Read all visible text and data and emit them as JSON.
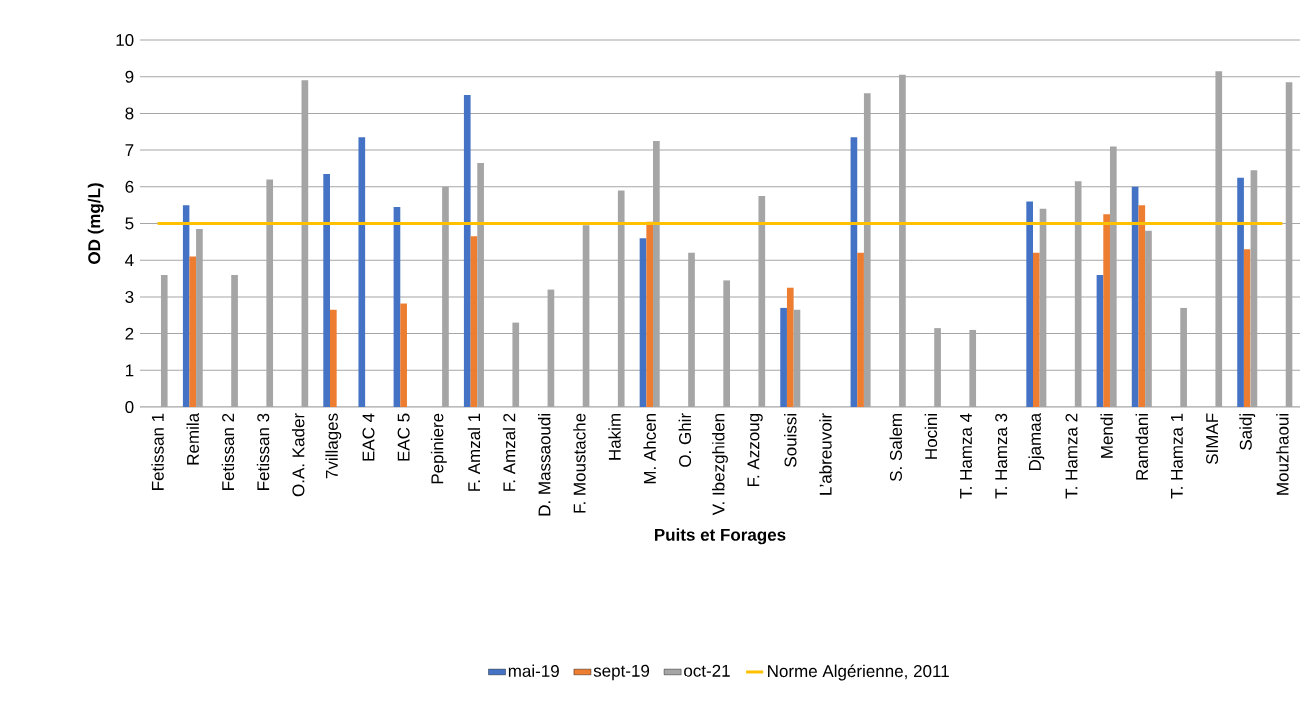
{
  "chart_data": {
    "type": "bar",
    "xlabel": "Puits et Forages",
    "ylabel": "OD (mg/L)",
    "categories": [
      "Fetissan 1",
      "Remila",
      "Fetissan 2",
      "Fetissan 3",
      "O.A. Kader",
      "7villages",
      "EAC 4",
      "EAC 5",
      "Pepiniere",
      "F. Amzal 1",
      "F. Amzal 2",
      "D. Massaoudi",
      "F. Moustache",
      "Hakim",
      "M. Ahcen",
      "O. Ghir",
      "V. Ibezghiden",
      "F. Azzoug",
      "Souissi",
      "L’abreuvoir",
      null,
      "S. Salem",
      "Hocini",
      "T. Hamza 4",
      "T. Hamza 3",
      "Djamaa",
      "T. Hamza 2",
      "Mendi",
      "Ramdani",
      "T. Hamza 1",
      "SIMAF",
      "Saidj",
      "Mouzhaoui"
    ],
    "series": [
      {
        "name": "mai-19",
        "color": "#4472c4",
        "values": [
          null,
          5.5,
          null,
          null,
          null,
          6.35,
          7.35,
          5.45,
          null,
          8.5,
          null,
          null,
          null,
          null,
          4.6,
          null,
          null,
          null,
          2.7,
          null,
          7.35,
          null,
          null,
          null,
          null,
          5.6,
          null,
          3.6,
          6.0,
          null,
          null,
          6.25,
          null
        ]
      },
      {
        "name": "sept-19",
        "color": "#ed7d31",
        "values": [
          null,
          4.1,
          null,
          null,
          null,
          2.65,
          null,
          2.82,
          null,
          4.65,
          null,
          null,
          null,
          null,
          5.05,
          null,
          null,
          null,
          3.25,
          null,
          4.2,
          null,
          null,
          null,
          null,
          4.2,
          null,
          5.25,
          5.5,
          null,
          null,
          4.3,
          null
        ]
      },
      {
        "name": "oct-21",
        "color": "#a5a5a5",
        "values": [
          3.6,
          4.85,
          3.6,
          6.2,
          8.9,
          null,
          null,
          null,
          6.0,
          6.65,
          2.3,
          3.2,
          4.95,
          5.9,
          7.25,
          4.2,
          3.45,
          5.75,
          2.65,
          null,
          8.55,
          9.05,
          2.15,
          2.1,
          null,
          5.4,
          6.15,
          7.1,
          4.8,
          2.7,
          9.15,
          6.45,
          8.85
        ]
      }
    ],
    "ref_lines": [
      {
        "axis": "y",
        "value": 5,
        "label": "Norme Algérienne, 2011",
        "color": "#ffc000"
      }
    ],
    "ylim": [
      0,
      10
    ],
    "yticks": [
      0,
      1,
      2,
      3,
      4,
      5,
      6,
      7,
      8,
      9,
      10
    ],
    "grid": "y",
    "legend": "bottom"
  }
}
